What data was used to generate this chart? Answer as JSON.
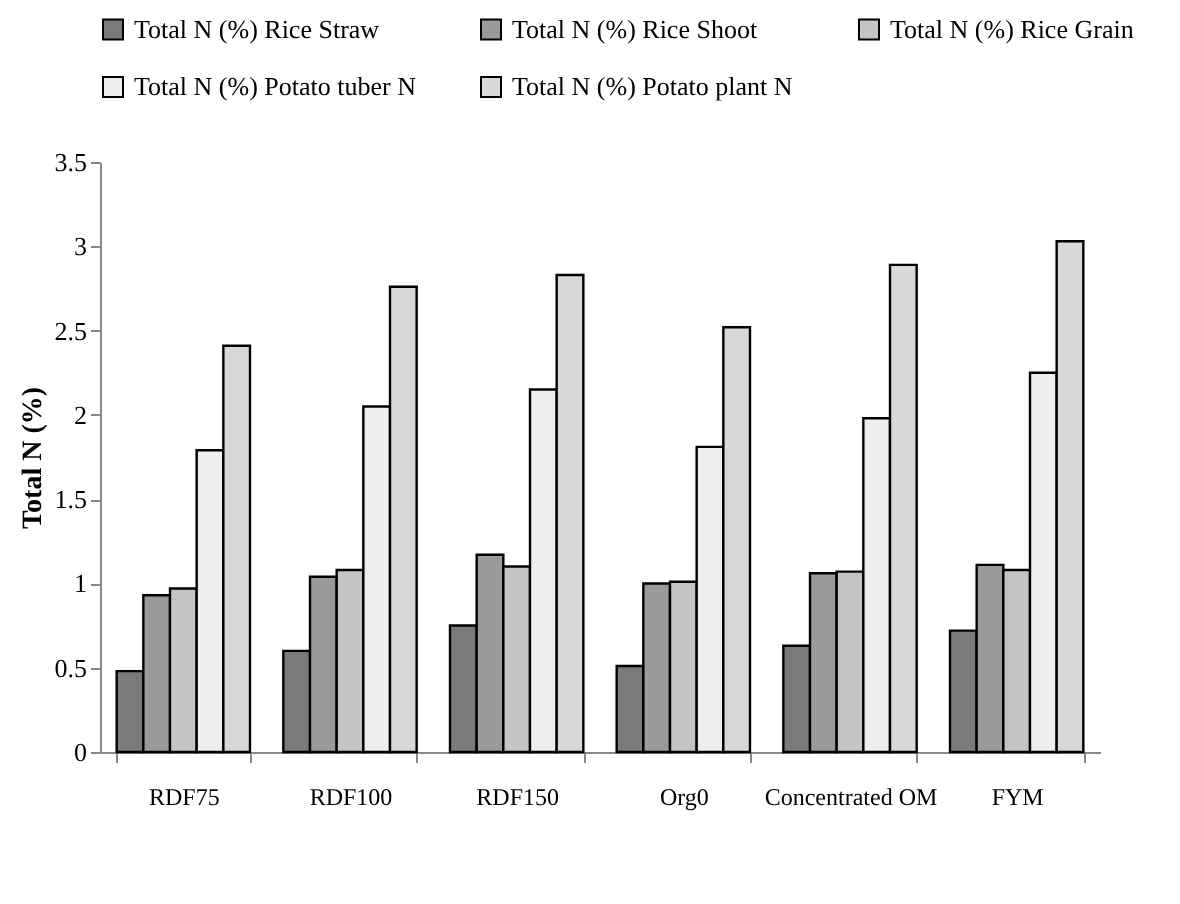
{
  "chart_data": {
    "type": "bar",
    "ylabel": "Total N (%)",
    "categories": [
      "RDF75",
      "RDF100",
      "RDF150",
      "Org0",
      "Concentrated OM",
      "FYM"
    ],
    "series": [
      {
        "name": "Total N (%) Rice Straw",
        "color": "#7a7a7a",
        "values": [
          0.48,
          0.6,
          0.75,
          0.51,
          0.63,
          0.72
        ]
      },
      {
        "name": "Total N (%) Rice Shoot",
        "color": "#9a9a9a",
        "values": [
          0.93,
          1.04,
          1.17,
          1.0,
          1.06,
          1.11
        ]
      },
      {
        "name": "Total N (%) Rice Grain",
        "color": "#c4c4c4",
        "values": [
          0.97,
          1.08,
          1.1,
          1.01,
          1.07,
          1.08
        ]
      },
      {
        "name": "Total N (%) Potato tuber N",
        "color": "#eeeeee",
        "values": [
          1.79,
          2.05,
          2.15,
          1.81,
          1.98,
          2.25
        ]
      },
      {
        "name": "Total N (%) Potato plant N",
        "color": "#d8d8d8",
        "values": [
          2.41,
          2.76,
          2.83,
          2.52,
          2.89,
          3.03
        ]
      }
    ],
    "ylim": [
      0,
      3.5
    ],
    "yticks": [
      0,
      0.5,
      1,
      1.5,
      2,
      2.5,
      3,
      3.5
    ],
    "grid": false,
    "legend": "top"
  }
}
